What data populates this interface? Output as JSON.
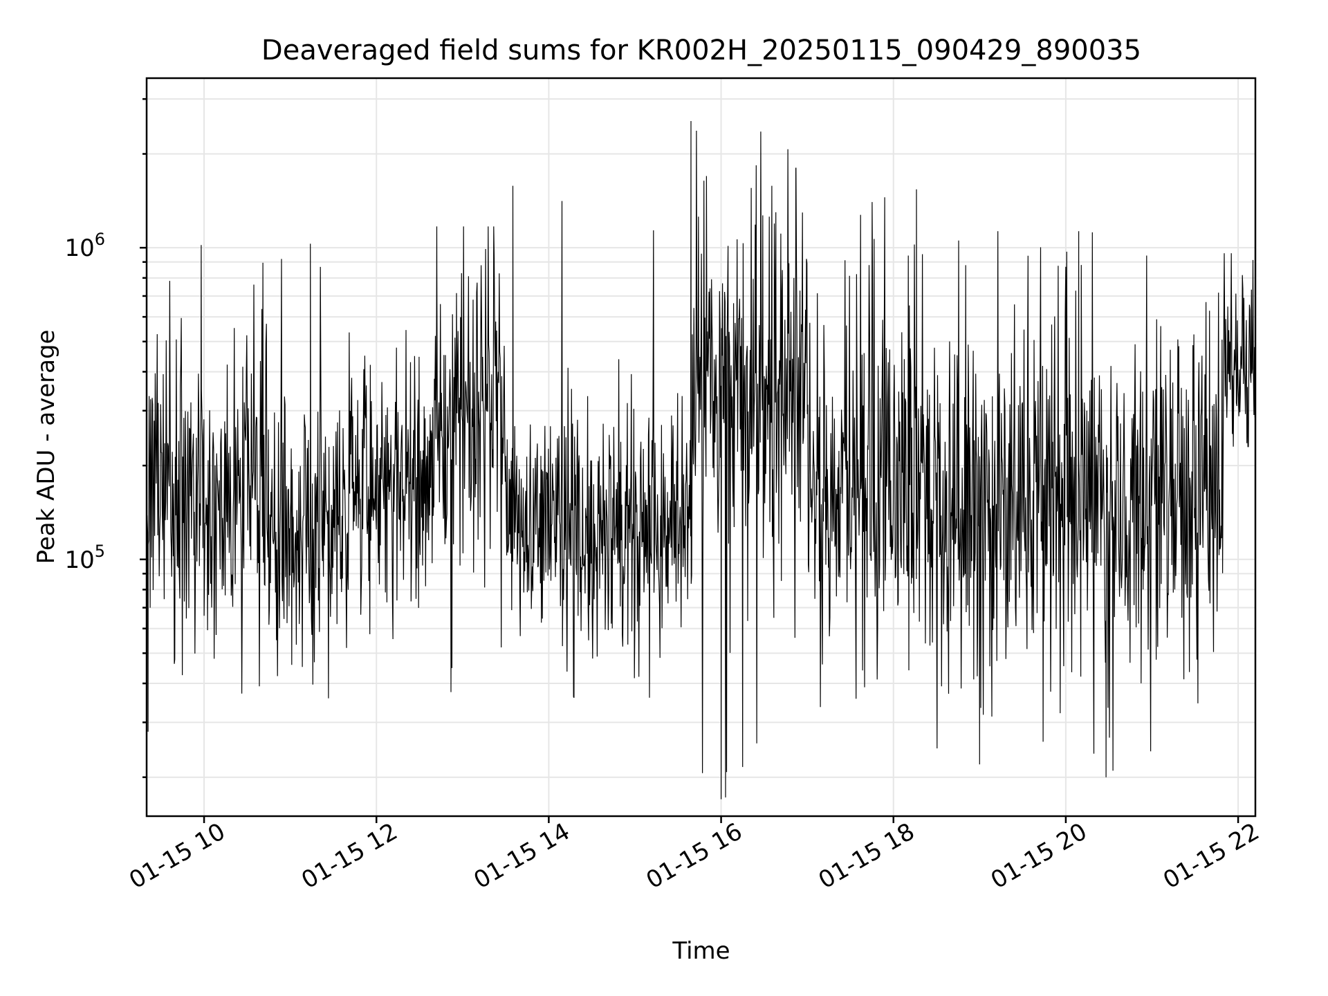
{
  "chart_data": {
    "type": "line",
    "title": "Deaveraged field sums for KR002H_20250115_090429_890035",
    "xlabel": "Time",
    "ylabel": "Peak ADU - average",
    "yscale": "log",
    "xlim": [
      "2025-01-15T09:20",
      "2025-01-15T22:12"
    ],
    "ylim": [
      15000,
      3500000
    ],
    "grid": true,
    "x_ticks": [
      {
        "value": "2025-01-15T10:00",
        "label": "01-15 10"
      },
      {
        "value": "2025-01-15T12:00",
        "label": "01-15 12"
      },
      {
        "value": "2025-01-15T14:00",
        "label": "01-15 14"
      },
      {
        "value": "2025-01-15T16:00",
        "label": "01-15 16"
      },
      {
        "value": "2025-01-15T18:00",
        "label": "01-15 18"
      },
      {
        "value": "2025-01-15T20:00",
        "label": "01-15 20"
      },
      {
        "value": "2025-01-15T22:00",
        "label": "01-15 22"
      }
    ],
    "y_ticks": [
      {
        "value": 100000,
        "base": "10",
        "exp": "5"
      },
      {
        "value": 1000000,
        "base": "10",
        "exp": "6"
      }
    ],
    "segments": [
      {
        "start": "2025-01-15T09:20",
        "end": "2025-01-15T10:00",
        "level": 180000,
        "spread": 0.24,
        "low": 28000,
        "high": 1020000
      },
      {
        "start": "2025-01-15T10:00",
        "end": "2025-01-15T11:00",
        "level": 140000,
        "spread": 0.22,
        "low": 37000,
        "high": 950000
      },
      {
        "start": "2025-01-15T11:00",
        "end": "2025-01-15T11:40",
        "level": 120000,
        "spread": 0.22,
        "low": 35000,
        "high": 1030000
      },
      {
        "start": "2025-01-15T11:40",
        "end": "2025-01-15T12:40",
        "level": 180000,
        "spread": 0.22,
        "low": 55000,
        "high": 560000
      },
      {
        "start": "2025-01-15T12:40",
        "end": "2025-01-15T13:30",
        "level": 300000,
        "spread": 0.25,
        "low": 37000,
        "high": 1170000
      },
      {
        "start": "2025-01-15T13:30",
        "end": "2025-01-15T15:40",
        "level": 130000,
        "spread": 0.2,
        "low": 36000,
        "high": 1580000
      },
      {
        "start": "2025-01-15T15:40",
        "end": "2025-01-15T16:50",
        "level": 350000,
        "spread": 0.3,
        "low": 17000,
        "high": 2550000
      },
      {
        "start": "2025-01-15T16:50",
        "end": "2025-01-15T17:00",
        "level": 400000,
        "spread": 0.3,
        "low": 45000,
        "high": 1800000
      },
      {
        "start": "2025-01-15T17:00",
        "end": "2025-01-15T18:30",
        "level": 180000,
        "spread": 0.28,
        "low": 31000,
        "high": 1540000
      },
      {
        "start": "2025-01-15T18:30",
        "end": "2025-01-15T21:50",
        "level": 150000,
        "spread": 0.28,
        "low": 20000,
        "high": 1130000
      },
      {
        "start": "2025-01-15T21:50",
        "end": "2025-01-15T22:12",
        "level": 420000,
        "spread": 0.15,
        "low": 230000,
        "high": 960000
      }
    ],
    "spikes": [
      {
        "x": "2025-01-15T15:39",
        "y": 2550000
      },
      {
        "x": "2025-01-15T15:48",
        "y": 1640000
      },
      {
        "x": "2025-01-15T16:00",
        "y": 17000
      },
      {
        "x": "2025-01-15T16:52",
        "y": 1800000
      },
      {
        "x": "2025-01-15T13:35",
        "y": 1580000
      },
      {
        "x": "2025-01-15T18:16",
        "y": 1540000
      },
      {
        "x": "2025-01-15T20:28",
        "y": 20000
      },
      {
        "x": "2025-01-15T12:42",
        "y": 1170000
      },
      {
        "x": "2025-01-15T20:09",
        "y": 1130000
      },
      {
        "x": "2025-01-15T11:14",
        "y": 1030000
      },
      {
        "x": "2025-01-15T09:58",
        "y": 1020000
      },
      {
        "x": "2025-01-15T09:21",
        "y": 28000
      },
      {
        "x": "2025-01-15T19:00",
        "y": 22000
      }
    ]
  }
}
